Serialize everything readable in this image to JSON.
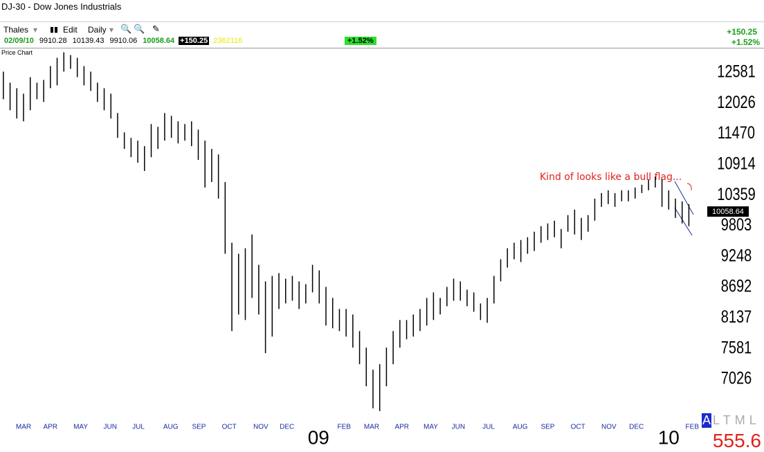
{
  "header": {
    "title": "DJ-30 - Dow Jones Industrials",
    "toolbar": [
      "Thales",
      "Edit",
      "Daily"
    ],
    "quote": {
      "date": "02/09/10",
      "open": "9910.28",
      "high": "10139.43",
      "low": "9910.06",
      "close": "10058.64",
      "change": "+150.25",
      "volume": "2362116",
      "percent": "+1.52%"
    },
    "right_change": "+150.25",
    "right_percent": "+1.52%",
    "panel_label": "Price Chart"
  },
  "chart_data": {
    "type": "ohlc",
    "annotation": "Kind of looks like a bull flag...",
    "last": 10058.64,
    "color": "#000000",
    "xlim": [
      0,
      104
    ],
    "xticks": [
      {
        "value": 3.5,
        "label": "MAR"
      },
      {
        "value": 7.5,
        "label": "APR"
      },
      {
        "value": 12,
        "label": "MAY"
      },
      {
        "value": 16.4,
        "label": "JUN"
      },
      {
        "value": 20.6,
        "label": "JUL"
      },
      {
        "value": 25.4,
        "label": "AUG"
      },
      {
        "value": 29.6,
        "label": "SEP"
      },
      {
        "value": 34.1,
        "label": "OCT"
      },
      {
        "value": 38.8,
        "label": "NOV"
      },
      {
        "value": 42.7,
        "label": "DEC"
      },
      {
        "value": 47.4,
        "label": "09"
      },
      {
        "value": 51.2,
        "label": "FEB"
      },
      {
        "value": 55.3,
        "label": "MAR"
      },
      {
        "value": 59.8,
        "label": "APR"
      },
      {
        "value": 64.1,
        "label": "MAY"
      },
      {
        "value": 68.2,
        "label": "JUN"
      },
      {
        "value": 72.7,
        "label": "JUL"
      },
      {
        "value": 77.4,
        "label": "AUG"
      },
      {
        "value": 81.5,
        "label": "SEP"
      },
      {
        "value": 86,
        "label": "OCT"
      },
      {
        "value": 90.6,
        "label": "NOV"
      },
      {
        "value": 94.7,
        "label": "DEC"
      },
      {
        "value": 99.5,
        "label": "10"
      },
      {
        "value": 103,
        "label": "FEB"
      }
    ],
    "ylim": [
      6311,
      12957
    ],
    "yticks": [
      12581,
      12026,
      11470,
      10914,
      10359,
      9803,
      9248,
      8692,
      8137,
      7581,
      7026
    ],
    "x": [
      0.5,
      1.5,
      2.5,
      3.5,
      4.5,
      5.5,
      6.5,
      7.5,
      8.5,
      9.5,
      10.5,
      11.5,
      12.5,
      13.5,
      14.5,
      15.5,
      16.5,
      17.5,
      18.5,
      19.5,
      20.5,
      21.5,
      22.5,
      23.5,
      24.5,
      25.5,
      26.5,
      27.5,
      28.5,
      29.5,
      30.5,
      31.5,
      32.5,
      33.5,
      34.5,
      35.5,
      36.5,
      37.5,
      38.5,
      39.5,
      40.5,
      41.5,
      42.5,
      43.5,
      44.5,
      45.5,
      46.5,
      47.5,
      48.5,
      49.5,
      50.5,
      51.5,
      52.5,
      53.5,
      54.5,
      55.5,
      56.5,
      57.5,
      58.5,
      59.5,
      60.5,
      61.5,
      62.5,
      63.5,
      64.5,
      65.5,
      66.5,
      67.5,
      68.5,
      69.5,
      70.5,
      71.5,
      72.5,
      73.5,
      74.5,
      75.5,
      76.5,
      77.5,
      78.5,
      79.5,
      80.5,
      81.5,
      82.5,
      83.5,
      84.5,
      85.5,
      86.5,
      87.5,
      88.5,
      89.5,
      90.5,
      91.5,
      92.5,
      93.5,
      94.5,
      95.5,
      96.5,
      97.5,
      98.5,
      99.5,
      100.5,
      101.5,
      102.5
    ],
    "high": [
      12600,
      12400,
      12300,
      12200,
      12500,
      12400,
      12450,
      12700,
      12850,
      12950,
      12900,
      12850,
      12700,
      12600,
      12400,
      12300,
      12200,
      11850,
      11500,
      11400,
      11350,
      11250,
      11650,
      11600,
      11850,
      11800,
      11700,
      11650,
      11700,
      11550,
      11350,
      11200,
      11100,
      10600,
      9500,
      9300,
      9400,
      9650,
      9100,
      8800,
      8900,
      8950,
      8850,
      8900,
      8800,
      8750,
      9100,
      9000,
      8700,
      8500,
      8300,
      8300,
      8200,
      7900,
      7600,
      7200,
      7300,
      7600,
      7900,
      8100,
      8100,
      8200,
      8300,
      8500,
      8600,
      8500,
      8700,
      8850,
      8800,
      8650,
      8600,
      8400,
      8500,
      8900,
      9200,
      9400,
      9500,
      9550,
      9600,
      9700,
      9800,
      9850,
      9900,
      9750,
      10000,
      10100,
      9950,
      10000,
      10300,
      10400,
      10450,
      10400,
      10450,
      10450,
      10500,
      10550,
      10650,
      10700,
      10650,
      10450,
      10300,
      10250,
      10200
    ],
    "low": [
      12100,
      11900,
      11750,
      11700,
      11900,
      12100,
      12050,
      12300,
      12350,
      12600,
      12650,
      12500,
      12350,
      12250,
      12050,
      11900,
      11750,
      11400,
      11200,
      11050,
      10950,
      10800,
      11050,
      11200,
      11350,
      11400,
      11300,
      11350,
      11250,
      11000,
      10500,
      10600,
      10300,
      9300,
      7900,
      8200,
      8100,
      8500,
      8200,
      7500,
      7800,
      8300,
      8400,
      8450,
      8300,
      8400,
      8600,
      8400,
      8000,
      7950,
      7900,
      7800,
      7600,
      7300,
      6900,
      6500,
      6450,
      6900,
      7300,
      7600,
      7750,
      7800,
      7900,
      8000,
      8100,
      8200,
      8350,
      8450,
      8450,
      8350,
      8250,
      8100,
      8050,
      8400,
      8800,
      9050,
      9200,
      9150,
      9300,
      9350,
      9500,
      9550,
      9600,
      9400,
      9700,
      9650,
      9550,
      9700,
      9900,
      10150,
      10200,
      10150,
      10250,
      10250,
      10300,
      10400,
      10450,
      10500,
      10150,
      10100,
      9950,
      9850,
      9800
    ]
  },
  "footer": {
    "buttons": [
      "A",
      "L",
      "T",
      "M",
      "L"
    ],
    "value": "555.6"
  }
}
